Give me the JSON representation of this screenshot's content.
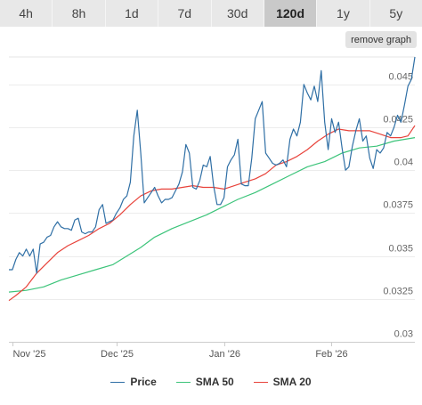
{
  "tabs": [
    {
      "label": "4h",
      "active": false
    },
    {
      "label": "8h",
      "active": false
    },
    {
      "label": "1d",
      "active": false
    },
    {
      "label": "7d",
      "active": false
    },
    {
      "label": "30d",
      "active": false
    },
    {
      "label": "120d",
      "active": true
    },
    {
      "label": "1y",
      "active": false
    },
    {
      "label": "5y",
      "active": false
    }
  ],
  "remove_graph_label": "remove graph",
  "chart_data": {
    "type": "line",
    "xlabel": "",
    "ylabel": "",
    "x_tick_labels": [
      "Nov '25",
      "Dec '25",
      "Jan '26",
      "Feb '26"
    ],
    "x_tick_dates": [
      "2025-11-01",
      "2025-12-01",
      "2026-01-01",
      "2026-02-01"
    ],
    "x_range": [
      "2025-10-31",
      "2026-02-25"
    ],
    "y_ticks": [
      0.03,
      0.0325,
      0.035,
      0.0375,
      0.04,
      0.0425,
      0.045
    ],
    "y_tick_labels": [
      "0.03",
      "0.0325",
      "0.035",
      "0.0375",
      "0.04",
      "0.0425",
      "0.045"
    ],
    "ylim": [
      0.03,
      0.0466
    ],
    "y_axis_position": "right",
    "grid": "horizontal",
    "legend_position": "bottom",
    "series": [
      {
        "name": "Price",
        "color": "#2f6fa5",
        "points": [
          [
            "2025-10-31",
            0.0342
          ],
          [
            "2025-11-01",
            0.0342
          ],
          [
            "2025-11-02",
            0.0348
          ],
          [
            "2025-11-03",
            0.0352
          ],
          [
            "2025-11-04",
            0.035
          ],
          [
            "2025-11-05",
            0.0354
          ],
          [
            "2025-11-06",
            0.035
          ],
          [
            "2025-11-07",
            0.0354
          ],
          [
            "2025-11-08",
            0.034
          ],
          [
            "2025-11-09",
            0.0357
          ],
          [
            "2025-11-10",
            0.0358
          ],
          [
            "2025-11-11",
            0.0361
          ],
          [
            "2025-11-12",
            0.0362
          ],
          [
            "2025-11-13",
            0.0367
          ],
          [
            "2025-11-14",
            0.037
          ],
          [
            "2025-11-15",
            0.0367
          ],
          [
            "2025-11-16",
            0.0366
          ],
          [
            "2025-11-17",
            0.0366
          ],
          [
            "2025-11-18",
            0.0365
          ],
          [
            "2025-11-19",
            0.0371
          ],
          [
            "2025-11-20",
            0.0372
          ],
          [
            "2025-11-21",
            0.0364
          ],
          [
            "2025-11-22",
            0.0363
          ],
          [
            "2025-11-23",
            0.0364
          ],
          [
            "2025-11-24",
            0.0364
          ],
          [
            "2025-11-25",
            0.0367
          ],
          [
            "2025-11-26",
            0.0377
          ],
          [
            "2025-11-27",
            0.038
          ],
          [
            "2025-11-28",
            0.0369
          ],
          [
            "2025-11-29",
            0.037
          ],
          [
            "2025-11-30",
            0.0371
          ],
          [
            "2025-12-01",
            0.0375
          ],
          [
            "2025-12-02",
            0.0378
          ],
          [
            "2025-12-03",
            0.0383
          ],
          [
            "2025-12-04",
            0.0385
          ],
          [
            "2025-12-05",
            0.0393
          ],
          [
            "2025-12-06",
            0.042
          ],
          [
            "2025-12-07",
            0.0435
          ],
          [
            "2025-12-08",
            0.041
          ],
          [
            "2025-12-09",
            0.0381
          ],
          [
            "2025-12-10",
            0.0384
          ],
          [
            "2025-12-11",
            0.0387
          ],
          [
            "2025-12-12",
            0.039
          ],
          [
            "2025-12-13",
            0.0385
          ],
          [
            "2025-12-14",
            0.0381
          ],
          [
            "2025-12-15",
            0.0383
          ],
          [
            "2025-12-16",
            0.0383
          ],
          [
            "2025-12-17",
            0.0384
          ],
          [
            "2025-12-18",
            0.0388
          ],
          [
            "2025-12-19",
            0.0392
          ],
          [
            "2025-12-20",
            0.0399
          ],
          [
            "2025-12-21",
            0.0415
          ],
          [
            "2025-12-22",
            0.041
          ],
          [
            "2025-12-23",
            0.039
          ],
          [
            "2025-12-24",
            0.0389
          ],
          [
            "2025-12-25",
            0.0394
          ],
          [
            "2025-12-26",
            0.0403
          ],
          [
            "2025-12-27",
            0.0402
          ],
          [
            "2025-12-28",
            0.0408
          ],
          [
            "2025-12-29",
            0.0391
          ],
          [
            "2025-12-30",
            0.038
          ],
          [
            "2025-12-31",
            0.038
          ],
          [
            "2026-01-01",
            0.0384
          ],
          [
            "2026-01-02",
            0.0402
          ],
          [
            "2026-01-03",
            0.0406
          ],
          [
            "2026-01-04",
            0.0409
          ],
          [
            "2026-01-05",
            0.0418
          ],
          [
            "2026-01-06",
            0.0392
          ],
          [
            "2026-01-07",
            0.0391
          ],
          [
            "2026-01-08",
            0.0391
          ],
          [
            "2026-01-09",
            0.0407
          ],
          [
            "2026-01-10",
            0.043
          ],
          [
            "2026-01-11",
            0.0435
          ],
          [
            "2026-01-12",
            0.044
          ],
          [
            "2026-01-13",
            0.041
          ],
          [
            "2026-01-14",
            0.0407
          ],
          [
            "2026-01-15",
            0.0404
          ],
          [
            "2026-01-16",
            0.0403
          ],
          [
            "2026-01-17",
            0.0404
          ],
          [
            "2026-01-18",
            0.0406
          ],
          [
            "2026-01-19",
            0.0402
          ],
          [
            "2026-01-20",
            0.0418
          ],
          [
            "2026-01-21",
            0.0424
          ],
          [
            "2026-01-22",
            0.042
          ],
          [
            "2026-01-23",
            0.0428
          ],
          [
            "2026-01-24",
            0.045
          ],
          [
            "2026-01-25",
            0.0445
          ],
          [
            "2026-01-26",
            0.0441
          ],
          [
            "2026-01-27",
            0.0449
          ],
          [
            "2026-01-28",
            0.044
          ],
          [
            "2026-01-29",
            0.0458
          ],
          [
            "2026-01-30",
            0.0428
          ],
          [
            "2026-01-31",
            0.0412
          ],
          [
            "2026-02-01",
            0.043
          ],
          [
            "2026-02-02",
            0.0422
          ],
          [
            "2026-02-03",
            0.0428
          ],
          [
            "2026-02-04",
            0.0413
          ],
          [
            "2026-02-05",
            0.04
          ],
          [
            "2026-02-06",
            0.0402
          ],
          [
            "2026-02-07",
            0.0414
          ],
          [
            "2026-02-08",
            0.0423
          ],
          [
            "2026-02-09",
            0.043
          ],
          [
            "2026-02-10",
            0.0417
          ],
          [
            "2026-02-11",
            0.042
          ],
          [
            "2026-02-12",
            0.0407
          ],
          [
            "2026-02-13",
            0.0401
          ],
          [
            "2026-02-14",
            0.0412
          ],
          [
            "2026-02-15",
            0.041
          ],
          [
            "2026-02-16",
            0.0413
          ],
          [
            "2026-02-17",
            0.0422
          ],
          [
            "2026-02-18",
            0.042
          ],
          [
            "2026-02-19",
            0.0425
          ],
          [
            "2026-02-20",
            0.0432
          ],
          [
            "2026-02-21",
            0.0428
          ],
          [
            "2026-02-22",
            0.0438
          ],
          [
            "2026-02-23",
            0.0449
          ],
          [
            "2026-02-24",
            0.0453
          ],
          [
            "2026-02-25",
            0.0466
          ]
        ]
      },
      {
        "name": "SMA 50",
        "color": "#3cc47a",
        "points": [
          [
            "2025-10-31",
            0.0329
          ],
          [
            "2025-11-05",
            0.033
          ],
          [
            "2025-11-10",
            0.0332
          ],
          [
            "2025-11-15",
            0.0336
          ],
          [
            "2025-11-20",
            0.0339
          ],
          [
            "2025-11-25",
            0.0342
          ],
          [
            "2025-11-30",
            0.0345
          ],
          [
            "2025-12-04",
            0.035
          ],
          [
            "2025-12-08",
            0.0355
          ],
          [
            "2025-12-12",
            0.0361
          ],
          [
            "2025-12-17",
            0.0366
          ],
          [
            "2025-12-22",
            0.037
          ],
          [
            "2025-12-27",
            0.0374
          ],
          [
            "2026-01-01",
            0.0379
          ],
          [
            "2026-01-05",
            0.0383
          ],
          [
            "2026-01-10",
            0.0387
          ],
          [
            "2026-01-15",
            0.0392
          ],
          [
            "2026-01-20",
            0.0397
          ],
          [
            "2026-01-25",
            0.0402
          ],
          [
            "2026-01-30",
            0.0405
          ],
          [
            "2026-02-04",
            0.041
          ],
          [
            "2026-02-09",
            0.0413
          ],
          [
            "2026-02-14",
            0.0414
          ],
          [
            "2026-02-19",
            0.0417
          ],
          [
            "2026-02-25",
            0.0419
          ]
        ]
      },
      {
        "name": "SMA 20",
        "color": "#e8433b",
        "points": [
          [
            "2025-10-31",
            0.0324
          ],
          [
            "2025-11-02",
            0.0327
          ],
          [
            "2025-11-05",
            0.0332
          ],
          [
            "2025-11-08",
            0.034
          ],
          [
            "2025-11-11",
            0.0346
          ],
          [
            "2025-11-14",
            0.0352
          ],
          [
            "2025-11-17",
            0.0356
          ],
          [
            "2025-11-20",
            0.0359
          ],
          [
            "2025-11-23",
            0.0362
          ],
          [
            "2025-11-26",
            0.0366
          ],
          [
            "2025-11-29",
            0.0369
          ],
          [
            "2025-12-02",
            0.0374
          ],
          [
            "2025-12-05",
            0.038
          ],
          [
            "2025-12-08",
            0.0385
          ],
          [
            "2025-12-11",
            0.0388
          ],
          [
            "2025-12-14",
            0.0389
          ],
          [
            "2025-12-17",
            0.0389
          ],
          [
            "2025-12-20",
            0.039
          ],
          [
            "2025-12-23",
            0.0391
          ],
          [
            "2025-12-26",
            0.039
          ],
          [
            "2025-12-29",
            0.039
          ],
          [
            "2026-01-01",
            0.0389
          ],
          [
            "2026-01-04",
            0.0391
          ],
          [
            "2026-01-07",
            0.0393
          ],
          [
            "2026-01-10",
            0.0395
          ],
          [
            "2026-01-13",
            0.0398
          ],
          [
            "2026-01-16",
            0.0403
          ],
          [
            "2026-01-19",
            0.0405
          ],
          [
            "2026-01-22",
            0.0408
          ],
          [
            "2026-01-25",
            0.0412
          ],
          [
            "2026-01-28",
            0.0417
          ],
          [
            "2026-01-31",
            0.0421
          ],
          [
            "2026-02-03",
            0.0424
          ],
          [
            "2026-02-06",
            0.0423
          ],
          [
            "2026-02-09",
            0.0423
          ],
          [
            "2026-02-12",
            0.0423
          ],
          [
            "2026-02-15",
            0.0421
          ],
          [
            "2026-02-18",
            0.0419
          ],
          [
            "2026-02-21",
            0.0419
          ],
          [
            "2026-02-23",
            0.042
          ],
          [
            "2026-02-25",
            0.0426
          ]
        ]
      }
    ]
  }
}
